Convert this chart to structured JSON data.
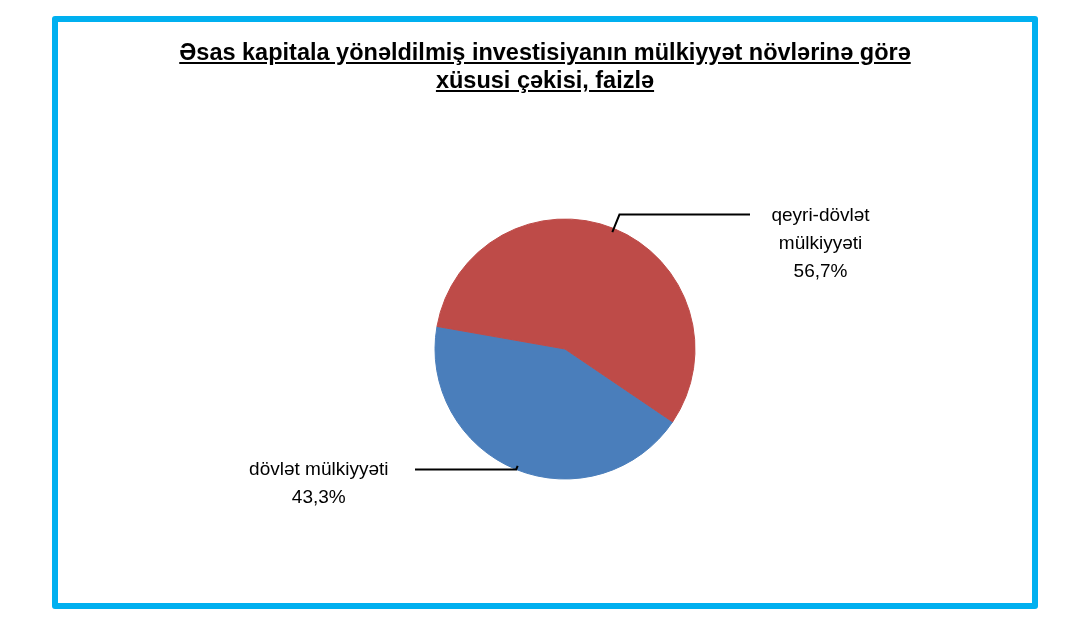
{
  "chart_data": {
    "type": "pie",
    "title": "Əsas kapitala yönəldilmiş investisiyanın mülkiyyət növlərinə görə xüsusi çəkisi, faizlə",
    "categories": [
      "dövlət mülkiyyəti",
      "qeyri-dövlət mülkiyyəti"
    ],
    "values": [
      43.3,
      56.7
    ],
    "colors": [
      "#4a7ebb",
      "#be4b48"
    ],
    "value_labels": [
      "43,3%",
      "56,7%"
    ]
  }
}
